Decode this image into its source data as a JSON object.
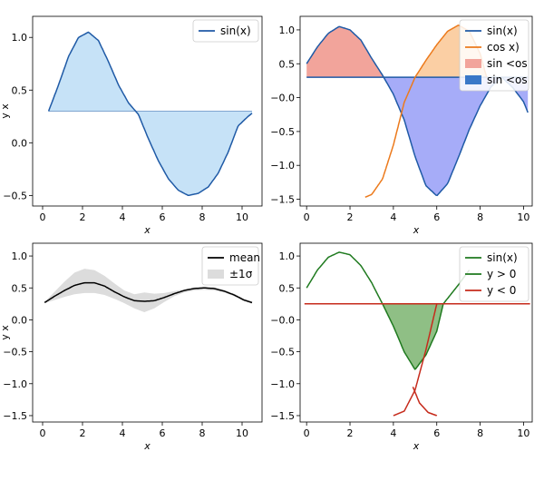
{
  "chart_data": [
    {
      "type": "area",
      "xlabel": "x",
      "ylabel": "y x",
      "xlim": [
        -0.5,
        11
      ],
      "ylim": [
        -0.6,
        1.2
      ],
      "xticks": [
        0,
        2,
        4,
        6,
        8,
        10
      ],
      "xticklabels": [
        "0",
        "2",
        "4",
        "6",
        "8",
        "10"
      ],
      "yticks": [
        -0.5,
        0.0,
        0.5,
        1.0
      ],
      "yticklabels": [
        "−0.5",
        "0.0",
        "0.5",
        "1.0"
      ],
      "legend": {
        "placement": "top-right"
      },
      "series": [
        {
          "name": "sin(x)",
          "kind": "line",
          "color": "#1f5aa6",
          "x": [
            0.3,
            0.8,
            1.3,
            1.8,
            2.3,
            2.8,
            3.3,
            3.8,
            4.3,
            4.8,
            5.3,
            5.8,
            6.3,
            6.8,
            7.3,
            7.8,
            8.3,
            8.8,
            9.3,
            9.8,
            10.3,
            10.5
          ],
          "y": [
            0.3,
            0.55,
            0.82,
            1.0,
            1.05,
            0.97,
            0.77,
            0.55,
            0.38,
            0.27,
            0.04,
            -0.17,
            -0.34,
            -0.45,
            -0.5,
            -0.48,
            -0.42,
            -0.29,
            -0.09,
            0.16,
            0.25,
            0.28
          ]
        }
      ],
      "fills": [
        {
          "kind": "between-curve-and-baseline",
          "baseline": 0.3,
          "color": "#c6e2f7"
        }
      ]
    },
    {
      "type": "area",
      "xlabel": "x",
      "ylabel": "",
      "xlim": [
        -0.3,
        10.4
      ],
      "ylim": [
        -1.6,
        1.2
      ],
      "xticks": [
        0,
        2,
        4,
        6,
        8,
        10
      ],
      "xticklabels": [
        "0",
        "2",
        "4",
        "6",
        "8",
        "10"
      ],
      "yticks": [
        -1.5,
        -1.0,
        -0.5,
        0.0,
        0.5,
        1.0
      ],
      "yticklabels": [
        "−1.5",
        "−1.0",
        "−0.5",
        "−0.0",
        "0.5",
        "1.0"
      ],
      "legend": {
        "placement": "top-right"
      },
      "series": [
        {
          "name": "sin(x)",
          "kind": "line",
          "color": "#1f5aa6",
          "x": [
            0,
            0.5,
            1.0,
            1.5,
            2.0,
            2.5,
            3.0,
            3.5,
            4.0,
            4.5,
            5.0,
            5.5,
            6.0,
            6.5,
            7.0,
            7.5,
            8.0,
            8.5,
            9.0,
            9.5,
            10.0,
            10.2
          ],
          "y": [
            0.5,
            0.75,
            0.95,
            1.05,
            1.0,
            0.85,
            0.58,
            0.33,
            0.05,
            -0.33,
            -0.87,
            -1.3,
            -1.45,
            -1.27,
            -0.88,
            -0.47,
            -0.12,
            0.16,
            0.3,
            0.15,
            -0.06,
            -0.22
          ]
        },
        {
          "name": "cos x)",
          "kind": "line",
          "color": "#ec7a1c",
          "x": [
            2.7,
            3.0,
            3.5,
            4.0,
            4.5,
            5.0,
            5.5,
            6.0,
            6.5,
            7.0,
            7.5,
            8.0,
            8.3
          ],
          "y": [
            -1.47,
            -1.43,
            -1.2,
            -0.7,
            -0.07,
            0.3,
            0.55,
            0.78,
            0.98,
            1.07,
            0.98,
            0.65,
            0.3
          ]
        }
      ],
      "fills": [
        {
          "name": "sin <os",
          "kind": "curve-above-baseline",
          "baseline": 0.3,
          "color": "#f2a49b"
        },
        {
          "name": "sin <os",
          "kind": "curve-below-baseline",
          "baseline": 0.3,
          "color": "#a6acf8",
          "legend_color": "#3a78c8"
        },
        {
          "kind": "orange-above-baseline",
          "baseline": 0.3,
          "color": "#fbcfa4"
        }
      ]
    },
    {
      "type": "line",
      "xlabel": "x",
      "ylabel": "y x",
      "xlim": [
        -0.5,
        11
      ],
      "ylim": [
        -1.6,
        1.2
      ],
      "xticks": [
        0,
        2,
        4,
        6,
        8,
        10
      ],
      "xticklabels": [
        "0",
        "2",
        "4",
        "6",
        "8",
        "10"
      ],
      "yticks": [
        -1.5,
        -1.0,
        -0.5,
        0.0,
        0.5,
        1.0
      ],
      "yticklabels": [
        "−1.5",
        "−1.0",
        "−0.5",
        "0.0",
        "0.5",
        "1.0"
      ],
      "legend": {
        "placement": "top-right"
      },
      "series": [
        {
          "name": "mean",
          "kind": "line",
          "color": "#000000",
          "x": [
            0.1,
            0.6,
            1.1,
            1.6,
            2.1,
            2.6,
            3.1,
            3.6,
            4.1,
            4.6,
            5.1,
            5.6,
            6.1,
            6.6,
            7.1,
            7.6,
            8.1,
            8.6,
            9.1,
            9.6,
            10.1,
            10.5
          ],
          "y": [
            0.27,
            0.37,
            0.46,
            0.54,
            0.58,
            0.58,
            0.53,
            0.44,
            0.36,
            0.3,
            0.29,
            0.3,
            0.35,
            0.41,
            0.46,
            0.49,
            0.5,
            0.49,
            0.45,
            0.39,
            0.31,
            0.27
          ],
          "band_label": "±1σ",
          "band_color": "#dcdcdc",
          "band_lower": [
            0.26,
            0.31,
            0.36,
            0.4,
            0.42,
            0.42,
            0.39,
            0.33,
            0.26,
            0.18,
            0.12,
            0.18,
            0.28,
            0.37,
            0.43,
            0.46,
            0.47,
            0.46,
            0.43,
            0.37,
            0.29,
            0.25
          ],
          "band_upper": [
            0.28,
            0.44,
            0.6,
            0.74,
            0.8,
            0.78,
            0.69,
            0.57,
            0.46,
            0.4,
            0.43,
            0.41,
            0.42,
            0.45,
            0.48,
            0.51,
            0.52,
            0.51,
            0.47,
            0.41,
            0.33,
            0.29
          ]
        }
      ]
    },
    {
      "type": "area",
      "xlabel": "x",
      "ylabel": "",
      "xlim": [
        -0.3,
        10.4
      ],
      "ylim": [
        -1.6,
        1.2
      ],
      "xticks": [
        0,
        2,
        4,
        6,
        8,
        10
      ],
      "xticklabels": [
        "0",
        "2",
        "4",
        "6",
        "8",
        "10"
      ],
      "yticks": [
        -1.5,
        -1.0,
        -0.5,
        0.0,
        0.5,
        1.0
      ],
      "yticklabels": [
        "−1.5",
        "−1.0",
        "−0.5",
        "−0.0",
        "0.5",
        "1.0"
      ],
      "legend": {
        "placement": "top-right"
      },
      "series": [
        {
          "name": "sin(x)",
          "kind": "line",
          "color": "#1f7a1f",
          "x": [
            0,
            0.5,
            1.0,
            1.5,
            2.0,
            2.5,
            3.0,
            3.5,
            4.0,
            4.5,
            5.0,
            5.5,
            6.0,
            6.3,
            7.0,
            7.5
          ],
          "y": [
            0.5,
            0.78,
            0.98,
            1.06,
            1.02,
            0.85,
            0.58,
            0.25,
            -0.1,
            -0.5,
            -0.78,
            -0.55,
            -0.18,
            0.25,
            0.55,
            0.78
          ]
        },
        {
          "name": "y > 0",
          "kind": "legend-only",
          "color": "#1f7a1f"
        },
        {
          "name": "y < 0",
          "kind": "line",
          "color": "#c62b1c",
          "x": [
            -0.1,
            10.3
          ],
          "y": [
            0.25,
            0.25
          ]
        },
        {
          "name": "",
          "kind": "line",
          "color": "#c62b1c",
          "x": [
            4.0,
            4.5,
            5.0,
            5.5,
            6.0
          ],
          "y": [
            -1.5,
            -1.43,
            -1.1,
            -0.47,
            0.25
          ]
        },
        {
          "name": "",
          "kind": "line",
          "color": "#c62b1c",
          "x": [
            4.9,
            5.2,
            5.6,
            6.0
          ],
          "y": [
            -1.05,
            -1.3,
            -1.45,
            -1.5
          ]
        }
      ],
      "fills": [
        {
          "kind": "curve-below-baseline",
          "baseline": 0.25,
          "color": "#8fbf85"
        }
      ]
    }
  ]
}
